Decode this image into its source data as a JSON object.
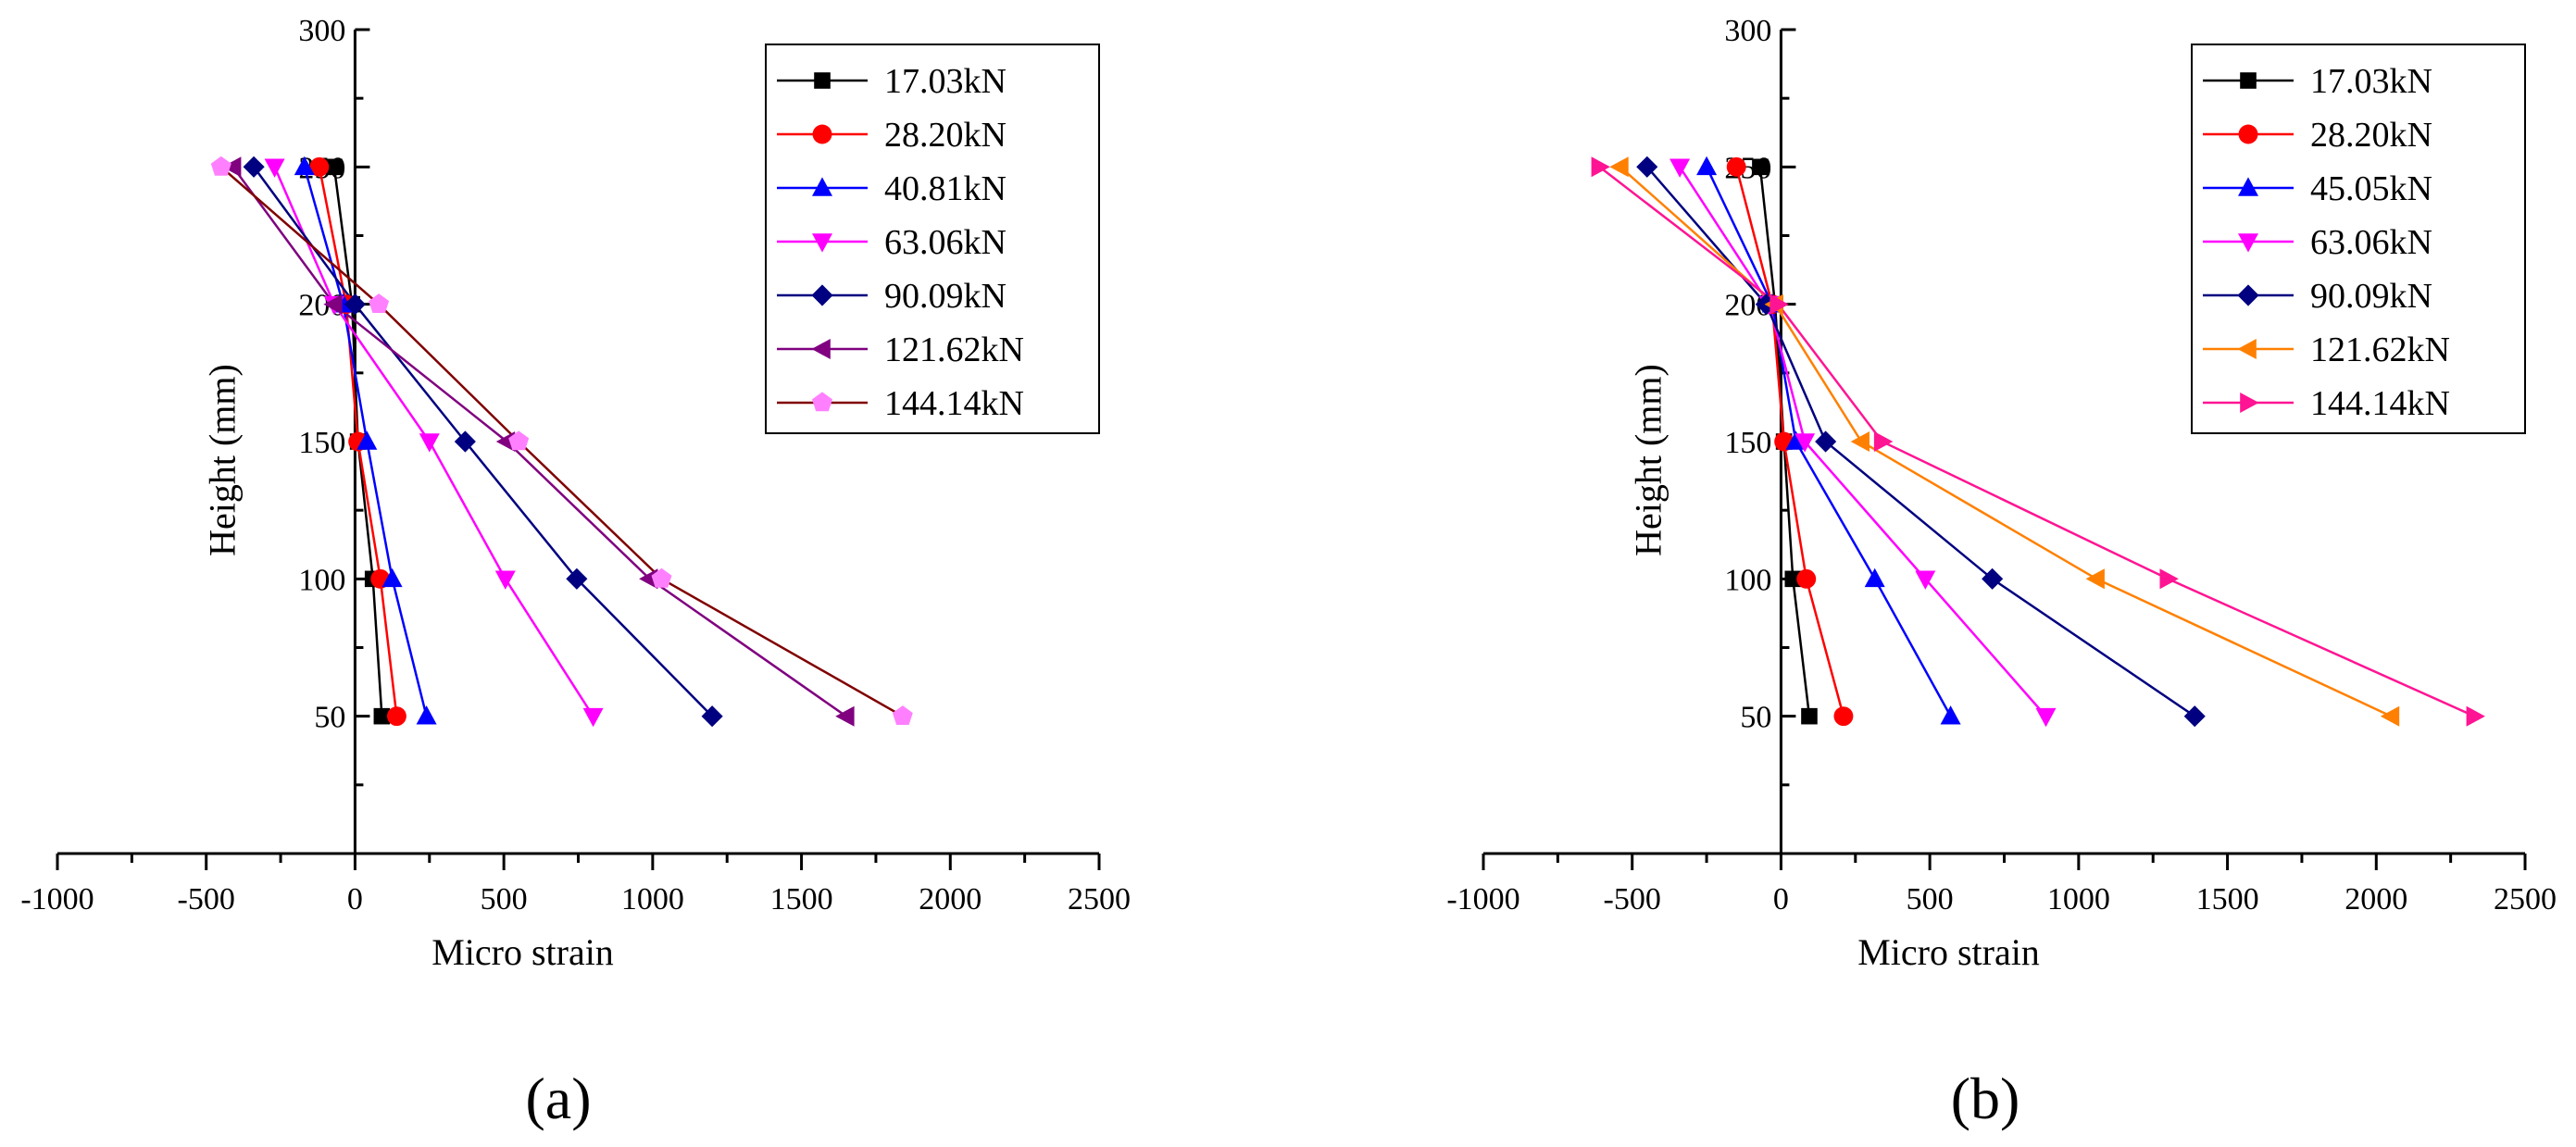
{
  "figure": {
    "panel_labels": [
      "(a)",
      "(b)"
    ]
  },
  "chart_data": [
    {
      "type": "line",
      "panel": "(a)",
      "xlabel": "Micro strain",
      "ylabel": "Height (mm)",
      "xlim": [
        -1000,
        2500
      ],
      "ylim": [
        0,
        300
      ],
      "xticks": [
        -1000,
        -500,
        0,
        500,
        1000,
        1500,
        2000,
        2500
      ],
      "yticks": [
        50,
        100,
        150,
        200,
        250,
        300
      ],
      "legend_position": "top-right",
      "heights": [
        250,
        200,
        150,
        100,
        50
      ],
      "series": [
        {
          "name": "17.03kN",
          "color": "#000000",
          "marker": "square",
          "x": [
            -70,
            -10,
            10,
            60,
            90
          ]
        },
        {
          "name": "28.20kN",
          "color": "#ff0000",
          "marker": "circle",
          "x": [
            -120,
            -30,
            10,
            85,
            140
          ]
        },
        {
          "name": "40.81kN",
          "color": "#0000ff",
          "marker": "triangle-up",
          "x": [
            -170,
            -40,
            40,
            125,
            240
          ]
        },
        {
          "name": "63.06kN",
          "color": "#ff00ff",
          "marker": "triangle-down",
          "x": [
            -270,
            -70,
            250,
            505,
            800
          ]
        },
        {
          "name": "90.09kN",
          "color": "#000080",
          "marker": "diamond",
          "x": [
            -340,
            0,
            370,
            745,
            1200
          ]
        },
        {
          "name": "121.62kN",
          "color": "#800080",
          "marker": "triangle-left",
          "x": [
            -410,
            -70,
            510,
            990,
            1650
          ]
        },
        {
          "name": "144.14kN",
          "color": "#ff80ff",
          "line_color": "#800000",
          "marker": "pentagon",
          "x": [
            -450,
            80,
            550,
            1030,
            1840
          ]
        }
      ]
    },
    {
      "type": "line",
      "panel": "(b)",
      "xlabel": "Micro strain",
      "ylabel": "Height (mm)",
      "xlim": [
        -1000,
        2500
      ],
      "ylim": [
        0,
        300
      ],
      "xticks": [
        -1000,
        -500,
        0,
        500,
        1000,
        1500,
        2000,
        2500
      ],
      "yticks": [
        50,
        100,
        150,
        200,
        250,
        300
      ],
      "legend_position": "top-right",
      "heights": [
        250,
        200,
        150,
        100,
        50
      ],
      "series": [
        {
          "name": "17.03kN",
          "color": "#000000",
          "marker": "square",
          "x": [
            -70,
            -20,
            10,
            40,
            95
          ]
        },
        {
          "name": "28.20kN",
          "color": "#ff0000",
          "marker": "circle",
          "x": [
            -150,
            -30,
            10,
            85,
            210
          ]
        },
        {
          "name": "45.05kN",
          "color": "#0000ff",
          "marker": "triangle-up",
          "x": [
            -250,
            -30,
            50,
            315,
            570
          ]
        },
        {
          "name": "63.06kN",
          "color": "#ff00ff",
          "marker": "triangle-down",
          "x": [
            -340,
            -40,
            80,
            485,
            890
          ]
        },
        {
          "name": "90.09kN",
          "color": "#000080",
          "marker": "diamond",
          "x": [
            -450,
            -50,
            150,
            710,
            1390
          ]
        },
        {
          "name": "121.62kN",
          "color": "#ff8000",
          "marker": "triangle-left",
          "x": [
            -540,
            -20,
            270,
            1060,
            2050
          ]
        },
        {
          "name": "144.14kN",
          "color": "#ff1493",
          "marker": "triangle-right",
          "x": [
            -610,
            -10,
            340,
            1300,
            2330
          ]
        }
      ]
    }
  ]
}
